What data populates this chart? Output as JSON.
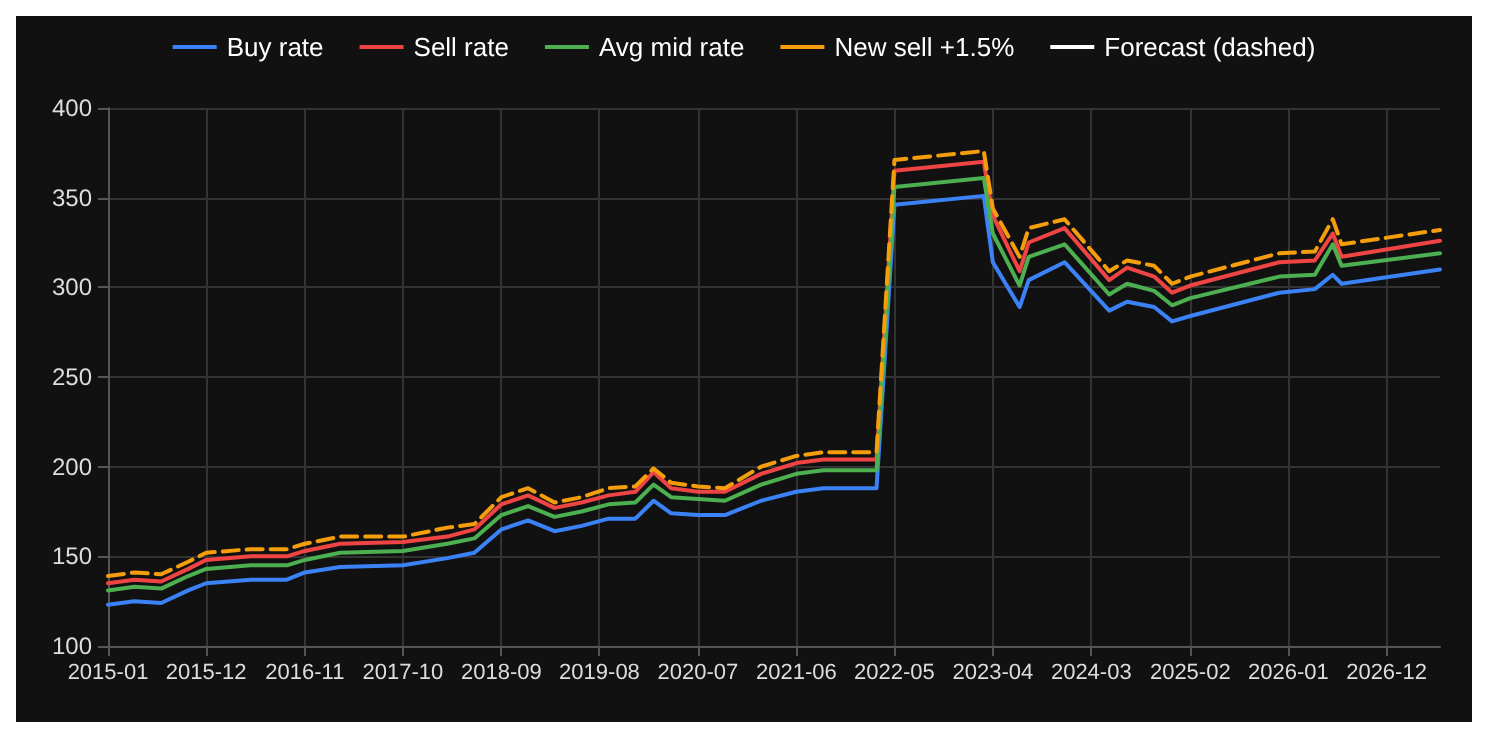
{
  "chart_data": {
    "type": "line",
    "x": [
      "2015-01",
      "2015-04",
      "2015-07",
      "2015-10",
      "2015-12",
      "2016-05",
      "2016-09",
      "2016-11",
      "2017-03",
      "2017-10",
      "2018-03",
      "2018-06",
      "2018-09",
      "2018-12",
      "2019-03",
      "2019-06",
      "2019-09",
      "2019-12",
      "2020-02",
      "2020-04",
      "2020-07",
      "2020-10",
      "2021-02",
      "2021-06",
      "2021-09",
      "2022-01",
      "2022-03",
      "2022-05",
      "2023-03",
      "2023-04",
      "2023-07",
      "2023-08",
      "2023-12",
      "2024-05",
      "2024-07",
      "2024-10",
      "2024-12",
      "2025-02",
      "2025-12",
      "2026-04",
      "2026-06",
      "2026-07",
      "2027-06"
    ],
    "series": [
      {
        "name": "Buy rate",
        "color": "#3b82f6",
        "values": [
          123,
          125,
          124,
          131,
          135,
          137,
          137,
          141,
          144,
          145,
          149,
          152,
          165,
          170,
          164,
          167,
          171,
          171,
          181,
          174,
          173,
          173,
          181,
          186,
          188,
          188,
          188,
          346,
          351,
          314,
          289,
          304,
          314,
          287,
          292,
          289,
          281,
          284,
          297,
          299,
          307,
          302,
          310
        ]
      },
      {
        "name": "Sell rate",
        "color": "#ef4444",
        "values": [
          135,
          137,
          136,
          143,
          148,
          150,
          150,
          153,
          157,
          158,
          161,
          165,
          179,
          184,
          177,
          180,
          184,
          186,
          197,
          188,
          186,
          186,
          196,
          202,
          204,
          204,
          204,
          365,
          370,
          340,
          309,
          325,
          333,
          304,
          311,
          306,
          297,
          301,
          314,
          315,
          330,
          317,
          326
        ]
      },
      {
        "name": "Avg mid rate",
        "color": "#4caf50",
        "values": [
          131,
          133,
          132,
          139,
          143,
          145,
          145,
          148,
          152,
          153,
          157,
          160,
          173,
          178,
          172,
          175,
          179,
          180,
          190,
          183,
          182,
          181,
          190,
          196,
          198,
          198,
          198,
          356,
          361,
          330,
          301,
          317,
          324,
          296,
          302,
          298,
          290,
          294,
          306,
          307,
          324,
          312,
          319
        ]
      },
      {
        "name": "New sell +1.5%",
        "color": "#f59e0b",
        "line_style": "dashed",
        "values": [
          139,
          141,
          140,
          147,
          152,
          154,
          154,
          157,
          161,
          161,
          166,
          168,
          183,
          188,
          180,
          183,
          188,
          189,
          199,
          191,
          189,
          188,
          200,
          206,
          208,
          208,
          208,
          371,
          376,
          344,
          317,
          333,
          338,
          309,
          315,
          312,
          302,
          306,
          319,
          320,
          338,
          324,
          332
        ]
      },
      {
        "name": "Forecast (dashed)",
        "color": "#ffffff",
        "line_style": "dashed",
        "values": [
          null,
          null,
          null,
          null,
          null,
          null,
          null,
          null,
          null,
          null,
          null,
          null,
          null,
          null,
          null,
          null,
          null,
          null,
          null,
          null,
          null,
          null,
          null,
          null,
          null,
          null,
          null,
          null,
          null,
          null,
          null,
          null,
          null,
          null,
          null,
          null,
          null,
          null,
          null,
          null,
          null,
          null,
          null
        ]
      }
    ],
    "xlim": [
      "2015-01",
      "2027-06"
    ],
    "xticks": [
      "2015-01",
      "2015-12",
      "2016-11",
      "2017-10",
      "2018-09",
      "2019-08",
      "2020-07",
      "2021-06",
      "2022-05",
      "2023-04",
      "2024-03",
      "2025-02",
      "2026-01",
      "2026-12"
    ],
    "ylim": [
      100,
      400
    ],
    "yticks": [
      100,
      150,
      200,
      250,
      300,
      350,
      400
    ],
    "grid": true,
    "legend": "top",
    "line_style": "solid",
    "marker": "none"
  }
}
